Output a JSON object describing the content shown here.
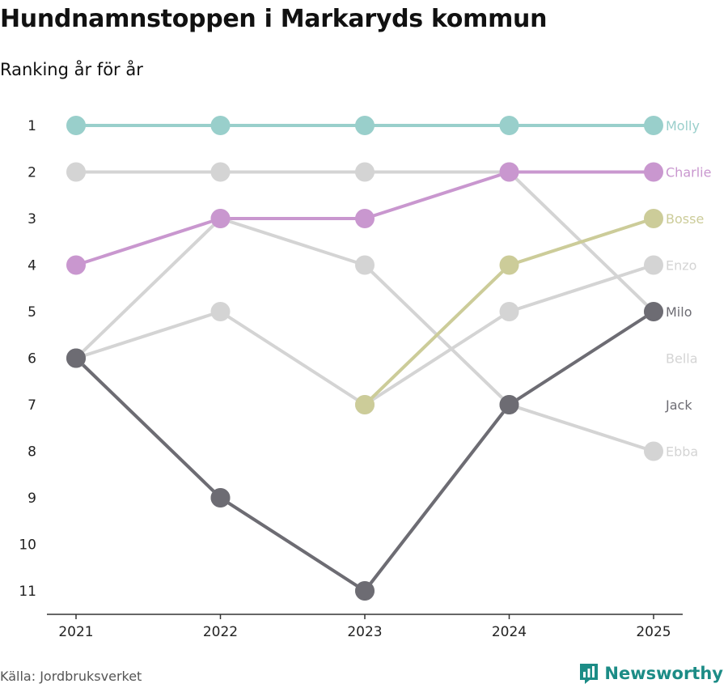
{
  "title": "Hundnamnstoppen i Markaryds kommun",
  "subtitle": "Ranking år för år",
  "source": "Källa: Jordbruksverket",
  "brand": "Newsworthy",
  "colors": {
    "brand": "#1c8c86",
    "grey": "#d4d4d4",
    "axis": "#333333"
  },
  "chart_data": {
    "type": "line",
    "x": [
      "2021",
      "2022",
      "2023",
      "2024",
      "2025"
    ],
    "y_ticks": [
      "1",
      "2",
      "3",
      "4",
      "5",
      "6",
      "7",
      "8",
      "9",
      "10",
      "11"
    ],
    "ylim": [
      1,
      11
    ],
    "y_inverted": true,
    "series": [
      {
        "name": "Molly",
        "ranks": [
          1,
          1,
          1,
          1,
          1
        ],
        "color": "#99cfcb"
      },
      {
        "name": "Charlie",
        "ranks": [
          4,
          3,
          3,
          2,
          2
        ],
        "color": "#c997cf"
      },
      {
        "name": "Bosse",
        "ranks": [
          null,
          null,
          7,
          4,
          3
        ],
        "color": "#cccc99"
      },
      {
        "name": "Enzo",
        "ranks": [
          6,
          5,
          7,
          5,
          4
        ],
        "color": "#d4d4d4"
      },
      {
        "name": "Milo",
        "ranks": [
          6,
          9,
          11,
          7,
          5
        ],
        "color": "#6d6c73"
      },
      {
        "name": "Bella",
        "ranks": [
          2,
          2,
          2,
          2,
          5
        ],
        "color": "#d4d4d4"
      },
      {
        "name": "Jack",
        "ranks": [
          6,
          9,
          11,
          7,
          null
        ],
        "color": "#aaaaaa"
      },
      {
        "name": "Ebba",
        "ranks": [
          6,
          3,
          4,
          7,
          8
        ],
        "color": "#d4d4d4"
      }
    ]
  }
}
